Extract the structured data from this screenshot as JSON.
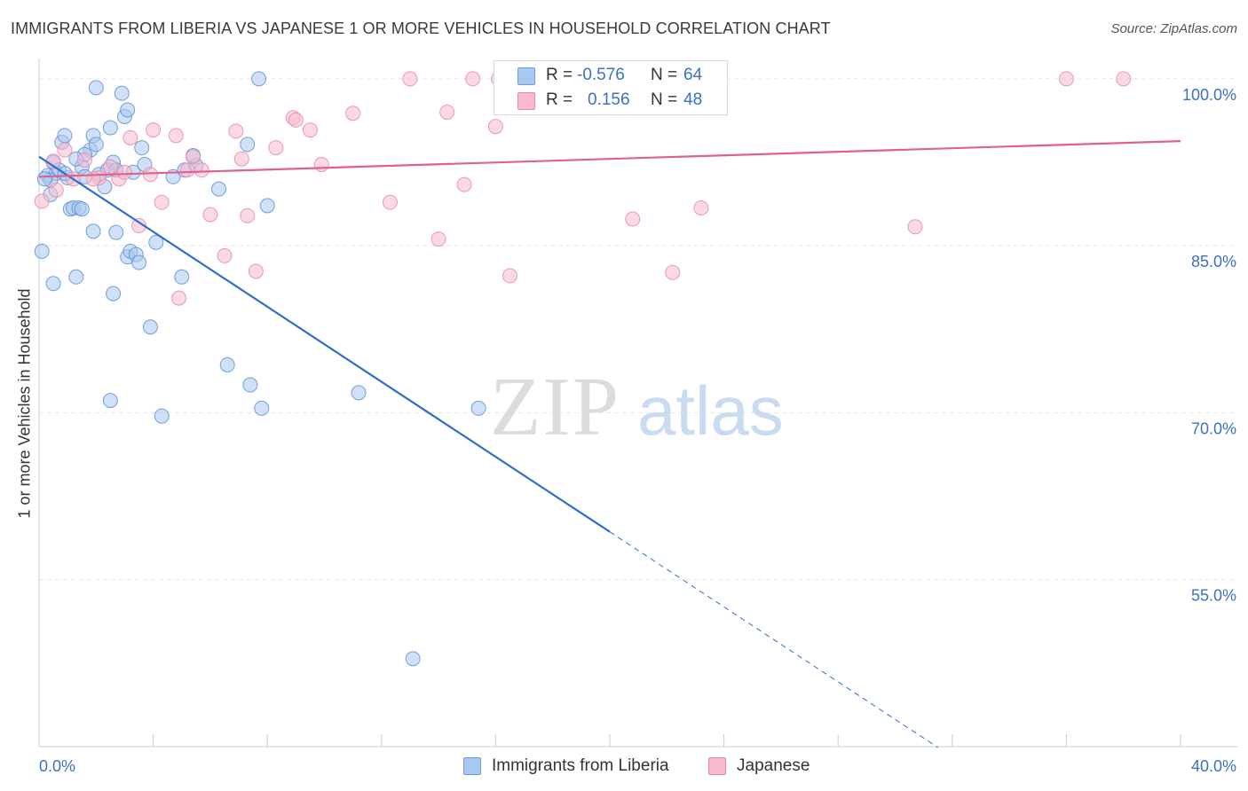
{
  "chart_data": {
    "type": "scatter",
    "title": "IMMIGRANTS FROM LIBERIA VS JAPANESE 1 OR MORE VEHICLES IN HOUSEHOLD CORRELATION CHART",
    "source": "Source: ZipAtlas.com",
    "ylabel": "1 or more Vehicles in Household",
    "xlim": [
      0,
      40
    ],
    "ylim": [
      40,
      101.5
    ],
    "x_tick_labels": [
      {
        "value": 0,
        "label": "0.0%"
      },
      {
        "value": 40,
        "label": "40.0%"
      }
    ],
    "y_tick_labels": [
      {
        "value": 100,
        "label": "100.0%"
      },
      {
        "value": 85,
        "label": "85.0%"
      },
      {
        "value": 70,
        "label": "70.0%"
      },
      {
        "value": 55,
        "label": "55.0%"
      }
    ],
    "grid": true,
    "watermark": {
      "part1": "ZIP",
      "part2": "atlas"
    },
    "legend_stats": [
      {
        "r_label": "R =",
        "r_value": "-0.576",
        "n_label": "N =",
        "n_value": "64",
        "fill": "#a9c8f0",
        "stroke": "#6d9ede"
      },
      {
        "r_label": "R =",
        "r_value": "0.156",
        "n_label": "N =",
        "n_value": "48",
        "fill": "#f7b9cd",
        "stroke": "#e88aa8"
      }
    ],
    "series": [
      {
        "name": "Immigrants from Liberia",
        "fill": "#a9c8f0",
        "stroke": "#5e8fd6",
        "line": "#2e6fcb",
        "trend": {
          "x0": 0.0,
          "y0": 93.0,
          "x1": 20.0,
          "y1": 59.3,
          "dash_x_end": 31.5
        },
        "points": [
          [
            0.3,
            91.3
          ],
          [
            0.5,
            92.5
          ],
          [
            0.6,
            91.5
          ],
          [
            0.8,
            94.3
          ],
          [
            0.9,
            94.9
          ],
          [
            0.7,
            91.8
          ],
          [
            0.4,
            90.9
          ],
          [
            1.0,
            91.1
          ],
          [
            1.1,
            88.3
          ],
          [
            1.2,
            88.4
          ],
          [
            1.4,
            88.4
          ],
          [
            1.5,
            88.3
          ],
          [
            1.5,
            92.1
          ],
          [
            1.6,
            91.2
          ],
          [
            1.8,
            93.6
          ],
          [
            1.9,
            94.9
          ],
          [
            2.0,
            94.1
          ],
          [
            2.1,
            91.4
          ],
          [
            2.3,
            90.3
          ],
          [
            2.4,
            91.8
          ],
          [
            2.5,
            95.6
          ],
          [
            2.6,
            92.5
          ],
          [
            2.7,
            91.8
          ],
          [
            2.0,
            99.2
          ],
          [
            2.9,
            98.7
          ],
          [
            3.0,
            96.6
          ],
          [
            3.1,
            97.2
          ],
          [
            3.3,
            91.6
          ],
          [
            3.6,
            93.8
          ],
          [
            3.7,
            92.3
          ],
          [
            1.9,
            86.3
          ],
          [
            2.7,
            86.2
          ],
          [
            3.1,
            84.0
          ],
          [
            3.2,
            84.5
          ],
          [
            3.4,
            84.2
          ],
          [
            3.5,
            83.5
          ],
          [
            4.1,
            85.3
          ],
          [
            4.7,
            91.2
          ],
          [
            5.1,
            91.8
          ],
          [
            5.5,
            92.2
          ],
          [
            5.4,
            93.1
          ],
          [
            3.9,
            77.7
          ],
          [
            4.3,
            69.7
          ],
          [
            2.5,
            71.1
          ],
          [
            1.3,
            82.2
          ],
          [
            0.5,
            81.6
          ],
          [
            2.6,
            80.7
          ],
          [
            5.0,
            82.2
          ],
          [
            6.3,
            90.1
          ],
          [
            6.6,
            74.3
          ],
          [
            7.4,
            72.5
          ],
          [
            7.3,
            94.1
          ],
          [
            7.7,
            100.0
          ],
          [
            7.8,
            70.4
          ],
          [
            8.0,
            88.6
          ],
          [
            11.2,
            71.8
          ],
          [
            15.4,
            70.4
          ],
          [
            13.1,
            47.9
          ],
          [
            0.1,
            84.5
          ],
          [
            0.2,
            91.0
          ],
          [
            0.9,
            91.5
          ],
          [
            1.6,
            93.2
          ],
          [
            0.4,
            89.6
          ],
          [
            1.3,
            92.8
          ]
        ]
      },
      {
        "name": "Japanese",
        "fill": "#f7b9cd",
        "stroke": "#e88aa8",
        "line": "#e0608e",
        "trend": {
          "x0": 0.0,
          "y0": 91.2,
          "x1": 40.0,
          "y1": 94.4
        },
        "points": [
          [
            0.1,
            89.0
          ],
          [
            0.5,
            92.6
          ],
          [
            0.6,
            90.0
          ],
          [
            0.9,
            93.6
          ],
          [
            1.2,
            91.0
          ],
          [
            1.6,
            92.7
          ],
          [
            2.1,
            91.1
          ],
          [
            2.5,
            92.1
          ],
          [
            2.8,
            91.0
          ],
          [
            3.0,
            91.6
          ],
          [
            3.2,
            94.7
          ],
          [
            3.5,
            86.8
          ],
          [
            3.9,
            91.4
          ],
          [
            4.0,
            95.4
          ],
          [
            4.3,
            88.9
          ],
          [
            4.8,
            94.9
          ],
          [
            4.9,
            80.3
          ],
          [
            5.2,
            91.8
          ],
          [
            5.4,
            93.0
          ],
          [
            5.7,
            91.8
          ],
          [
            6.0,
            87.8
          ],
          [
            6.5,
            84.1
          ],
          [
            6.9,
            95.3
          ],
          [
            7.1,
            92.8
          ],
          [
            7.3,
            87.7
          ],
          [
            7.6,
            82.7
          ],
          [
            8.3,
            93.8
          ],
          [
            8.9,
            96.5
          ],
          [
            9.0,
            96.3
          ],
          [
            9.5,
            95.4
          ],
          [
            9.9,
            92.3
          ],
          [
            11.0,
            96.9
          ],
          [
            12.3,
            88.9
          ],
          [
            13.0,
            100.0
          ],
          [
            14.0,
            85.6
          ],
          [
            14.3,
            97.0
          ],
          [
            14.9,
            90.5
          ],
          [
            15.2,
            100.0
          ],
          [
            16.0,
            95.7
          ],
          [
            16.5,
            82.3
          ],
          [
            16.1,
            100.0
          ],
          [
            20.8,
            87.4
          ],
          [
            22.2,
            82.6
          ],
          [
            23.2,
            88.4
          ],
          [
            30.7,
            86.7
          ],
          [
            36.0,
            100.0
          ],
          [
            38.0,
            100.0
          ],
          [
            1.9,
            91.0
          ]
        ]
      }
    ]
  }
}
